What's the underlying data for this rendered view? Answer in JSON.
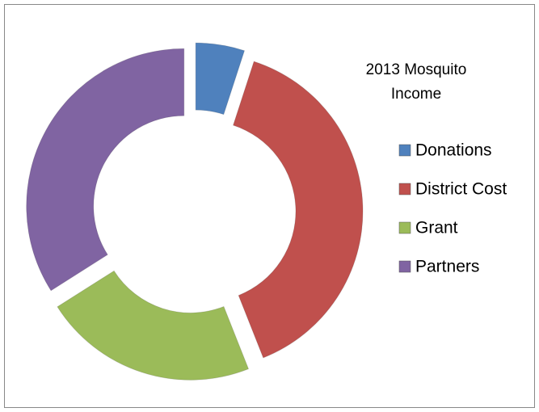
{
  "chart_data": {
    "type": "donut",
    "title": "2013 Mosquito Income",
    "categories": [
      "Donations",
      "District Cost",
      "Grant",
      "Partners"
    ],
    "values": [
      5,
      39,
      22,
      34
    ],
    "colors": [
      "#4f81bd",
      "#c0504d",
      "#9bbb59",
      "#8064a2"
    ],
    "legend": "right"
  }
}
